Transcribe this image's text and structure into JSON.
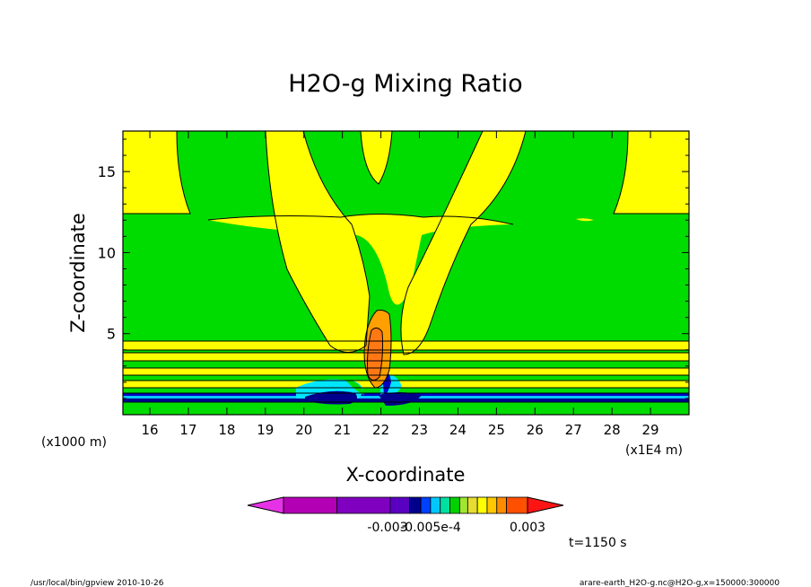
{
  "chart_data": {
    "type": "heatmap",
    "title": "H2O-g Mixing Ratio",
    "xlabel": "X-coordinate",
    "ylabel": "Z-coordinate",
    "x_unit": "(x1E4 m)",
    "y_unit": "(x1000 m)",
    "xlim": [
      15.3,
      30
    ],
    "ylim": [
      0,
      17.5
    ],
    "x_ticks": [
      16,
      17,
      18,
      19,
      20,
      21,
      22,
      23,
      24,
      25,
      26,
      27,
      28,
      29
    ],
    "y_ticks": [
      5,
      10,
      15
    ],
    "colorbar_ticks": [
      "-0.003",
      "-0.005e-4",
      "0.003"
    ],
    "colorbar_colors": [
      "#b400b4",
      "#8000c0",
      "#5a00c0",
      "#00008c",
      "#0040ff",
      "#00c8ff",
      "#00e0a0",
      "#00d200",
      "#a0e632",
      "#e6dc32",
      "#ffff00",
      "#ffc800",
      "#ff8c00",
      "#ff5000"
    ],
    "colorbar_end_colors": [
      "#e632e6",
      "#ff1414"
    ],
    "regions": [
      {
        "level": "green",
        "fill": "#00dc00"
      },
      {
        "level": "yellow",
        "fill": "#ffff00"
      },
      {
        "level": "orange",
        "fill": "#ffa000"
      },
      {
        "level": "dark-orange",
        "fill": "#ff7814"
      },
      {
        "level": "cyan",
        "fill": "#00e6ff"
      },
      {
        "level": "blue",
        "fill": "#0000c8"
      },
      {
        "level": "navy",
        "fill": "#00008c"
      }
    ],
    "time_label": "t=1150 s"
  },
  "footer": {
    "left": "/usr/local/bin/gpview  2010-10-26",
    "right": "arare-earth_H2O-g.nc@H2O-g,x=150000:300000"
  }
}
